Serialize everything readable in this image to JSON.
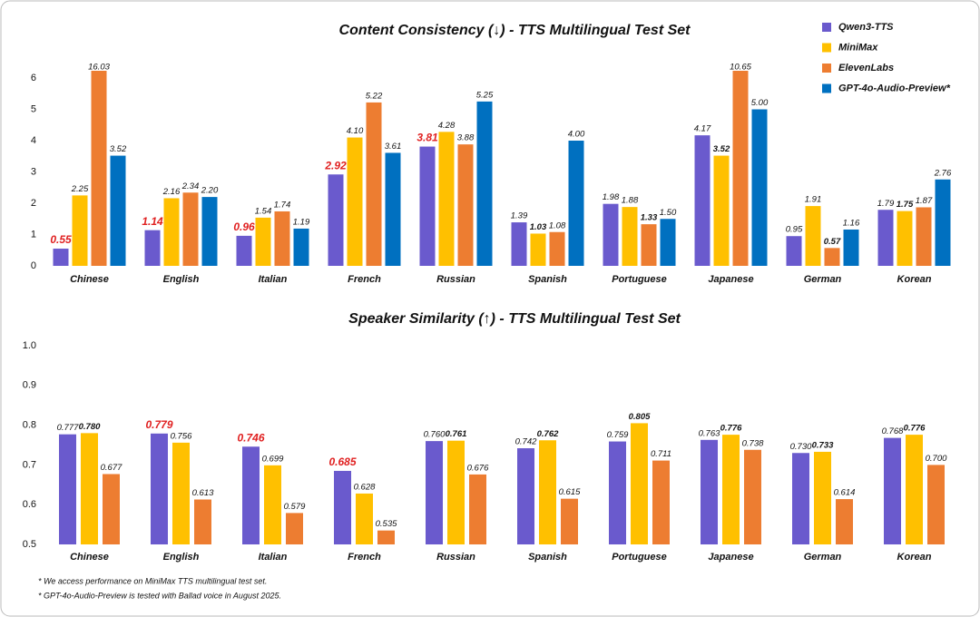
{
  "chart_data": [
    {
      "type": "bar",
      "title": "Content Consistency (↓) - TTS Multilingual Test Set",
      "highlight": "min",
      "legend": "top-right",
      "categories": [
        "Chinese",
        "English",
        "Italian",
        "French",
        "Russian",
        "Spanish",
        "Portuguese",
        "Japanese",
        "German",
        "Korean"
      ],
      "ylim": [
        0,
        6.2
      ],
      "yticks": [
        0,
        1,
        2,
        3,
        4,
        5,
        6
      ],
      "series": [
        {
          "name": "Qwen3-TTS",
          "color": "#6a5acd",
          "values": [
            0.55,
            1.14,
            0.96,
            2.92,
            3.81,
            1.39,
            1.98,
            4.17,
            0.95,
            1.79
          ],
          "value_labels": [
            "0.55",
            "1.14",
            "0.96",
            "2.92",
            "3.81",
            "1.39",
            "1.98",
            "4.17",
            "0.95",
            "1.79"
          ]
        },
        {
          "name": "MiniMax",
          "color": "#ffc000",
          "values": [
            2.25,
            2.16,
            1.54,
            4.1,
            4.28,
            1.03,
            1.88,
            3.52,
            1.91,
            1.75
          ],
          "value_labels": [
            "2.25",
            "2.16",
            "1.54",
            "4.10",
            "4.28",
            "1.03",
            "1.88",
            "3.52",
            "1.91",
            "1.75"
          ]
        },
        {
          "name": "ElevenLabs",
          "color": "#ed7d31",
          "values": [
            16.03,
            2.34,
            1.74,
            5.22,
            3.88,
            1.08,
            1.33,
            10.65,
            0.57,
            1.87
          ],
          "value_labels": [
            "16.03",
            "2.34",
            "1.74",
            "5.22",
            "3.88",
            "1.08",
            "1.33",
            "10.65",
            "0.57",
            "1.87"
          ]
        },
        {
          "name": "GPT-4o-Audio-Preview*",
          "color": "#0070c0",
          "values": [
            3.52,
            2.2,
            1.19,
            3.61,
            5.25,
            4,
            1.5,
            5,
            1.16,
            2.76
          ],
          "value_labels": [
            "3.52",
            "2.20",
            "1.19",
            "3.61",
            "5.25",
            "4.00",
            "1.50",
            "5.00",
            "1.16",
            "2.76"
          ]
        }
      ]
    },
    {
      "type": "bar",
      "title": "Speaker Similarity (↑) - TTS Multilingual Test Set",
      "highlight": "max",
      "categories": [
        "Chinese",
        "English",
        "Italian",
        "French",
        "Russian",
        "Spanish",
        "Portuguese",
        "Japanese",
        "German",
        "Korean"
      ],
      "ylim": [
        0.5,
        1
      ],
      "yticks": [
        0.5,
        0.6,
        0.7,
        0.8,
        0.9,
        {
          "value": 1,
          "label": "1.0"
        }
      ],
      "series": [
        {
          "color": "#6a5acd",
          "values": [
            0.777,
            0.779,
            0.746,
            0.685,
            0.76,
            0.742,
            0.759,
            0.763,
            0.73,
            0.768
          ],
          "value_labels": [
            "0.777",
            "0.779",
            "0.746",
            "0.685",
            "0.760",
            "0.742",
            "0.759",
            "0.763",
            "0.730",
            "0.768"
          ]
        },
        {
          "color": "#ffc000",
          "values": [
            0.78,
            0.756,
            0.699,
            0.628,
            0.761,
            0.762,
            0.805,
            0.776,
            0.733,
            0.776
          ],
          "value_labels": [
            "0.780",
            "0.756",
            "0.699",
            "0.628",
            "0.761",
            "0.762",
            "0.805",
            "0.776",
            "0.733",
            "0.776"
          ]
        },
        {
          "color": "#ed7d31",
          "values": [
            0.677,
            0.613,
            0.579,
            0.535,
            0.676,
            0.615,
            0.711,
            0.738,
            0.614,
            0.7
          ],
          "value_labels": [
            "0.677",
            "0.613",
            "0.579",
            "0.535",
            "0.676",
            "0.615",
            "0.711",
            "0.738",
            "0.614",
            "0.700"
          ]
        }
      ]
    }
  ],
  "footnotes": [
    "* We access performance on MiniMax TTS multilingual test set.",
    "* GPT-4o-Audio-Preview is tested with Ballad voice in August 2025."
  ]
}
